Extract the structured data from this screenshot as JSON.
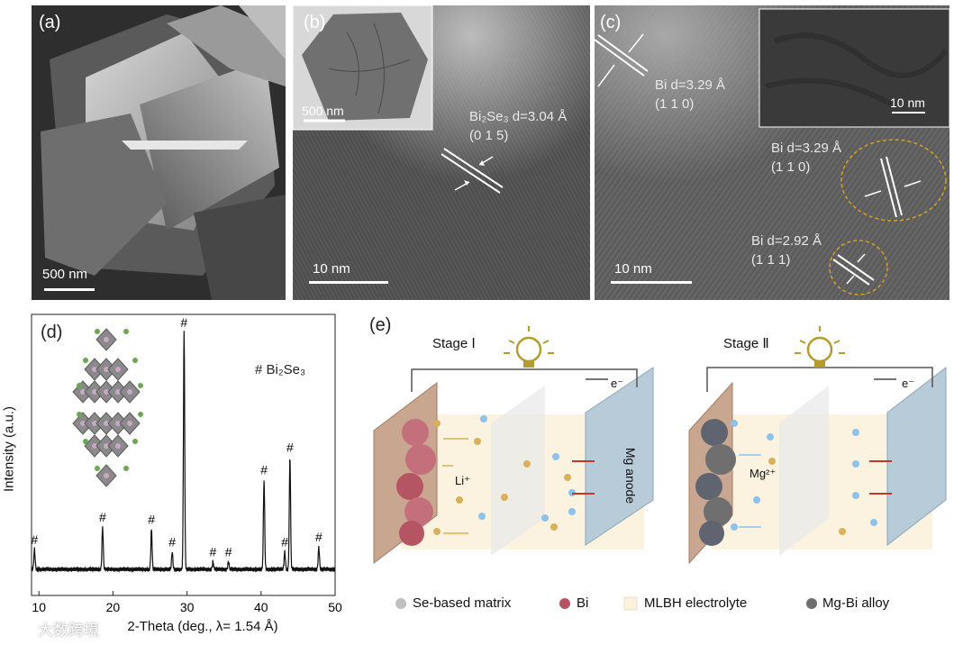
{
  "panel_a": {
    "label": "(a)",
    "scale": "500 nm"
  },
  "panel_b": {
    "label": "(b)",
    "inset_scale": "500 nm",
    "scale": "10 nm",
    "annot_line1": "Bi₂Se₃ d=3.04 Å",
    "annot_line2": "(0 1 5)"
  },
  "panel_c": {
    "label": "(c)",
    "inset_scale": "10 nm",
    "scale": "10 nm",
    "annot1_line1": "Bi d=3.29 Å",
    "annot1_line2": "(1 1 0)",
    "annot2_line1": "Bi d=3.29 Å",
    "annot2_line2": "(1 1 0)",
    "annot3_line1": "Bi d=2.92 Å",
    "annot3_line2": "(1 1 1)"
  },
  "panel_d": {
    "label": "(d)",
    "legend": "# Bi₂Se₃",
    "marker": "#"
  },
  "panel_e": {
    "label": "(e)",
    "stage1": "Stage Ⅰ",
    "stage2": "Stage Ⅱ",
    "electron": "e⁻",
    "li_ion": "Li⁺",
    "mg_ion": "Mg²⁺",
    "anode": "Mg anode",
    "legend": [
      {
        "label": "Se-based matrix",
        "color": "#bfbfbf"
      },
      {
        "label": "Bi",
        "color": "#b55563"
      },
      {
        "label": "MLBH electrolyte",
        "color": "#fbf1dc"
      },
      {
        "label": "Mg-Bi alloy",
        "color": "#6f6f6f"
      }
    ]
  },
  "watermark": "大数跨境",
  "chart_data": {
    "type": "line",
    "xlabel": "2-Theta (deg., λ= 1.54 Å)",
    "ylabel": "Intensity (a.u.)",
    "xlim": [
      9,
      50
    ],
    "xticks": [
      10,
      20,
      30,
      40,
      50
    ],
    "grid": false,
    "series": [
      {
        "name": "Bi₂Se₃"
      }
    ],
    "peaks": [
      {
        "x": 9.4,
        "y": 0.08
      },
      {
        "x": 18.6,
        "y": 0.17
      },
      {
        "x": 25.2,
        "y": 0.16
      },
      {
        "x": 28.0,
        "y": 0.07
      },
      {
        "x": 29.6,
        "y": 0.95
      },
      {
        "x": 33.5,
        "y": 0.03
      },
      {
        "x": 35.6,
        "y": 0.03
      },
      {
        "x": 40.4,
        "y": 0.36
      },
      {
        "x": 43.2,
        "y": 0.07
      },
      {
        "x": 43.9,
        "y": 0.45
      },
      {
        "x": 47.8,
        "y": 0.09
      }
    ]
  }
}
